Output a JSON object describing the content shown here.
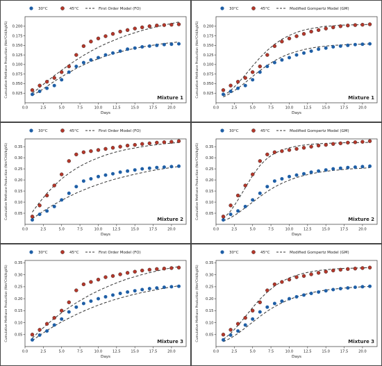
{
  "legend_items": {
    "s30": "30°C",
    "s45": "45°C"
  },
  "colors": {
    "s30": "#1f5fa6",
    "s45": "#b5372a",
    "fit": "#333333"
  },
  "chart_data": [
    {
      "type": "scatter",
      "model": "First Order Model (FO)",
      "annotation": "Mixture 1",
      "xlabel": "Days",
      "ylabel": "Cumulative Methane Production (Nm³CH4/kgVS)",
      "xlim": [
        0,
        22
      ],
      "ylim": [
        0.0,
        0.225
      ],
      "xticks": [
        0,
        2.5,
        5.0,
        7.5,
        10.0,
        12.5,
        15.0,
        17.5,
        20.0
      ],
      "xtick_labels": [
        "0.0",
        "2.5",
        "5.0",
        "7.5",
        "10.0",
        "12.5",
        "15.0",
        "17.5",
        "20.0"
      ],
      "yticks": [
        0.025,
        0.05,
        0.075,
        0.1,
        0.125,
        0.15,
        0.175,
        0.2
      ],
      "ytick_labels": [
        "0.025",
        "0.050",
        "0.075",
        "0.100",
        "0.125",
        "0.150",
        "0.175",
        "0.200"
      ],
      "x": [
        1,
        2,
        3,
        4,
        5,
        6,
        7,
        8,
        9,
        10,
        11,
        12,
        13,
        14,
        15,
        16,
        17,
        18,
        19,
        20,
        21
      ],
      "series": [
        {
          "name": "30°C",
          "values": [
            0.022,
            0.03,
            0.038,
            0.045,
            0.06,
            0.08,
            0.095,
            0.105,
            0.112,
            0.118,
            0.125,
            0.13,
            0.135,
            0.14,
            0.143,
            0.146,
            0.148,
            0.15,
            0.152,
            0.153,
            0.154
          ]
        },
        {
          "name": "45°C",
          "values": [
            0.033,
            0.045,
            0.055,
            0.065,
            0.08,
            0.095,
            0.125,
            0.148,
            0.16,
            0.168,
            0.174,
            0.18,
            0.186,
            0.19,
            0.194,
            0.197,
            0.2,
            0.202,
            0.203,
            0.204,
            0.205
          ]
        }
      ],
      "fits": [
        {
          "name": "fit-30",
          "values": [
            0.02,
            0.03,
            0.043,
            0.056,
            0.068,
            0.079,
            0.09,
            0.099,
            0.108,
            0.115,
            0.122,
            0.128,
            0.133,
            0.138,
            0.142,
            0.146,
            0.149,
            0.152,
            0.155,
            0.157,
            0.159
          ]
        },
        {
          "name": "fit-45",
          "values": [
            0.025,
            0.04,
            0.056,
            0.071,
            0.085,
            0.099,
            0.112,
            0.124,
            0.135,
            0.145,
            0.154,
            0.162,
            0.17,
            0.177,
            0.183,
            0.189,
            0.194,
            0.199,
            0.203,
            0.207,
            0.211
          ]
        }
      ]
    },
    {
      "type": "scatter",
      "model": "Modified Gompertz Model (GM)",
      "annotation": "Mixture 1",
      "xlabel": "Days",
      "ylabel": "Cumulative Methane Production (Nm³CH4/kgVS)",
      "xlim": [
        0,
        22
      ],
      "ylim": [
        0.0,
        0.225
      ],
      "xticks": [
        0,
        2.5,
        5.0,
        7.5,
        10.0,
        12.5,
        15.0,
        17.5,
        20.0
      ],
      "xtick_labels": [
        "0.0",
        "2.5",
        "5.0",
        "7.5",
        "10.0",
        "12.5",
        "15.0",
        "17.5",
        "20.0"
      ],
      "yticks": [
        0.025,
        0.05,
        0.075,
        0.1,
        0.125,
        0.15,
        0.175,
        0.2
      ],
      "ytick_labels": [
        "0.025",
        "0.050",
        "0.075",
        "0.100",
        "0.125",
        "0.150",
        "0.175",
        "0.200"
      ],
      "x": [
        1,
        2,
        3,
        4,
        5,
        6,
        7,
        8,
        9,
        10,
        11,
        12,
        13,
        14,
        15,
        16,
        17,
        18,
        19,
        20,
        21
      ],
      "series": [
        {
          "name": "30°C",
          "values": [
            0.022,
            0.03,
            0.038,
            0.045,
            0.06,
            0.08,
            0.095,
            0.105,
            0.112,
            0.118,
            0.125,
            0.13,
            0.135,
            0.14,
            0.143,
            0.146,
            0.148,
            0.15,
            0.152,
            0.153,
            0.154
          ]
        },
        {
          "name": "45°C",
          "values": [
            0.033,
            0.045,
            0.055,
            0.065,
            0.08,
            0.095,
            0.125,
            0.148,
            0.16,
            0.168,
            0.174,
            0.18,
            0.186,
            0.19,
            0.194,
            0.197,
            0.2,
            0.202,
            0.203,
            0.204,
            0.205
          ]
        }
      ],
      "fits": [
        {
          "name": "fit-30",
          "values": [
            0.015,
            0.025,
            0.038,
            0.053,
            0.069,
            0.084,
            0.098,
            0.11,
            0.12,
            0.128,
            0.134,
            0.139,
            0.143,
            0.146,
            0.148,
            0.15,
            0.151,
            0.152,
            0.153,
            0.153,
            0.154
          ]
        },
        {
          "name": "fit-45",
          "values": [
            0.018,
            0.032,
            0.051,
            0.073,
            0.096,
            0.118,
            0.137,
            0.153,
            0.166,
            0.176,
            0.184,
            0.19,
            0.194,
            0.197,
            0.2,
            0.201,
            0.203,
            0.203,
            0.204,
            0.204,
            0.205
          ]
        }
      ]
    },
    {
      "type": "scatter",
      "model": "First Order Model (FO)",
      "annotation": "Mixture 2",
      "xlabel": "Days",
      "ylabel": "Cumulative Methane Production (Nm³CH4/kgVS)",
      "xlim": [
        0,
        22
      ],
      "ylim": [
        0.0,
        0.385
      ],
      "xticks": [
        0,
        2.5,
        5.0,
        7.5,
        10.0,
        12.5,
        15.0,
        17.5,
        20.0
      ],
      "xtick_labels": [
        "0.0",
        "2.5",
        "5.0",
        "7.5",
        "10.0",
        "12.5",
        "15.0",
        "17.5",
        "20.0"
      ],
      "yticks": [
        0.05,
        0.1,
        0.15,
        0.2,
        0.25,
        0.3,
        0.35
      ],
      "ytick_labels": [
        "0.05",
        "0.10",
        "0.15",
        "0.20",
        "0.25",
        "0.30",
        "0.35"
      ],
      "x": [
        1,
        2,
        3,
        4,
        5,
        6,
        7,
        8,
        9,
        10,
        11,
        12,
        13,
        14,
        15,
        16,
        17,
        18,
        19,
        20,
        21
      ],
      "series": [
        {
          "name": "30°C",
          "values": [
            0.02,
            0.045,
            0.06,
            0.08,
            0.11,
            0.14,
            0.17,
            0.195,
            0.205,
            0.215,
            0.222,
            0.228,
            0.235,
            0.24,
            0.245,
            0.25,
            0.253,
            0.256,
            0.258,
            0.26,
            0.262
          ]
        },
        {
          "name": "45°C",
          "values": [
            0.035,
            0.085,
            0.13,
            0.175,
            0.225,
            0.285,
            0.315,
            0.325,
            0.33,
            0.335,
            0.34,
            0.345,
            0.35,
            0.355,
            0.358,
            0.362,
            0.365,
            0.368,
            0.37,
            0.372,
            0.375
          ]
        }
      ],
      "fits": [
        {
          "name": "fit-30",
          "values": [
            0.025,
            0.048,
            0.07,
            0.09,
            0.108,
            0.125,
            0.141,
            0.155,
            0.168,
            0.18,
            0.191,
            0.201,
            0.21,
            0.218,
            0.226,
            0.233,
            0.24,
            0.246,
            0.251,
            0.256,
            0.261
          ]
        },
        {
          "name": "fit-45",
          "values": [
            0.055,
            0.1,
            0.14,
            0.175,
            0.205,
            0.23,
            0.252,
            0.27,
            0.286,
            0.3,
            0.312,
            0.322,
            0.331,
            0.338,
            0.344,
            0.35,
            0.355,
            0.359,
            0.363,
            0.366,
            0.369
          ]
        }
      ]
    },
    {
      "type": "scatter",
      "model": "Modified Gompertz Model (GM)",
      "annotation": "Mixture 2",
      "xlabel": "Days",
      "ylabel": "Cumulative Methane Production (Nm³CH4/kgVS)",
      "xlim": [
        0,
        22
      ],
      "ylim": [
        0.0,
        0.385
      ],
      "xticks": [
        0,
        2.5,
        5.0,
        7.5,
        10.0,
        12.5,
        15.0,
        17.5,
        20.0
      ],
      "xtick_labels": [
        "0.0",
        "2.5",
        "5.0",
        "7.5",
        "10.0",
        "12.5",
        "15.0",
        "17.5",
        "20.0"
      ],
      "yticks": [
        0.05,
        0.1,
        0.15,
        0.2,
        0.25,
        0.3,
        0.35
      ],
      "ytick_labels": [
        "0.05",
        "0.10",
        "0.15",
        "0.20",
        "0.25",
        "0.30",
        "0.35"
      ],
      "x": [
        1,
        2,
        3,
        4,
        5,
        6,
        7,
        8,
        9,
        10,
        11,
        12,
        13,
        14,
        15,
        16,
        17,
        18,
        19,
        20,
        21
      ],
      "series": [
        {
          "name": "30°C",
          "values": [
            0.02,
            0.045,
            0.06,
            0.08,
            0.11,
            0.14,
            0.17,
            0.195,
            0.205,
            0.215,
            0.222,
            0.228,
            0.235,
            0.24,
            0.245,
            0.25,
            0.253,
            0.256,
            0.258,
            0.26,
            0.262
          ]
        },
        {
          "name": "45°C",
          "values": [
            0.035,
            0.085,
            0.13,
            0.175,
            0.225,
            0.285,
            0.315,
            0.325,
            0.33,
            0.335,
            0.34,
            0.345,
            0.35,
            0.355,
            0.358,
            0.362,
            0.365,
            0.368,
            0.37,
            0.372,
            0.375
          ]
        }
      ],
      "fits": [
        {
          "name": "fit-30",
          "values": [
            0.015,
            0.03,
            0.05,
            0.075,
            0.1,
            0.125,
            0.148,
            0.168,
            0.185,
            0.199,
            0.211,
            0.22,
            0.228,
            0.234,
            0.239,
            0.243,
            0.246,
            0.249,
            0.251,
            0.253,
            0.255
          ]
        },
        {
          "name": "fit-45",
          "values": [
            0.025,
            0.06,
            0.11,
            0.165,
            0.22,
            0.265,
            0.298,
            0.32,
            0.335,
            0.345,
            0.352,
            0.357,
            0.361,
            0.363,
            0.365,
            0.366,
            0.367,
            0.368,
            0.368,
            0.369,
            0.369
          ]
        }
      ]
    },
    {
      "type": "scatter",
      "model": "First Order Model (FO)",
      "annotation": "Mixture 3",
      "xlabel": "Days",
      "ylabel": "Cumulative Methane Production (Nm³CH4/kgVS)",
      "xlim": [
        0,
        22
      ],
      "ylim": [
        0.0,
        0.36
      ],
      "xticks": [
        0,
        2.5,
        5.0,
        7.5,
        10.0,
        12.5,
        15.0,
        17.5,
        20.0
      ],
      "xtick_labels": [
        "0.0",
        "2.5",
        "5.0",
        "7.5",
        "10.0",
        "12.5",
        "15.0",
        "17.5",
        "20.0"
      ],
      "yticks": [
        0.05,
        0.1,
        0.15,
        0.2,
        0.25,
        0.3,
        0.35
      ],
      "ytick_labels": [
        "0.05",
        "0.10",
        "0.15",
        "0.20",
        "0.25",
        "0.30",
        "0.35"
      ],
      "x": [
        1,
        2,
        3,
        4,
        5,
        6,
        7,
        8,
        9,
        10,
        11,
        12,
        13,
        14,
        15,
        16,
        17,
        18,
        19,
        20,
        21
      ],
      "series": [
        {
          "name": "30°C",
          "values": [
            0.028,
            0.048,
            0.065,
            0.09,
            0.115,
            0.145,
            0.165,
            0.18,
            0.19,
            0.2,
            0.208,
            0.215,
            0.222,
            0.228,
            0.233,
            0.238,
            0.242,
            0.245,
            0.248,
            0.25,
            0.252
          ]
        },
        {
          "name": "45°C",
          "values": [
            0.05,
            0.07,
            0.095,
            0.12,
            0.15,
            0.185,
            0.235,
            0.26,
            0.27,
            0.28,
            0.29,
            0.295,
            0.302,
            0.308,
            0.313,
            0.318,
            0.321,
            0.324,
            0.326,
            0.328,
            0.33
          ]
        }
      ],
      "fits": [
        {
          "name": "fit-30",
          "values": [
            0.025,
            0.047,
            0.067,
            0.086,
            0.103,
            0.119,
            0.134,
            0.148,
            0.161,
            0.173,
            0.184,
            0.194,
            0.203,
            0.211,
            0.219,
            0.226,
            0.232,
            0.238,
            0.244,
            0.249,
            0.254
          ]
        },
        {
          "name": "fit-45",
          "values": [
            0.035,
            0.065,
            0.092,
            0.118,
            0.141,
            0.163,
            0.183,
            0.201,
            0.218,
            0.233,
            0.247,
            0.26,
            0.272,
            0.283,
            0.292,
            0.301,
            0.309,
            0.316,
            0.323,
            0.329,
            0.334
          ]
        }
      ]
    },
    {
      "type": "scatter",
      "model": "Modified Gompertz Model (GM)",
      "annotation": "Mixture 3",
      "xlabel": "Days",
      "ylabel": "Cumulative Methane Production (Nm³CH4/kgVS)",
      "xlim": [
        0,
        22
      ],
      "ylim": [
        0.0,
        0.36
      ],
      "xticks": [
        0,
        2.5,
        5.0,
        7.5,
        10.0,
        12.5,
        15.0,
        17.5,
        20.0
      ],
      "xtick_labels": [
        "0.0",
        "2.5",
        "5.0",
        "7.5",
        "10.0",
        "12.5",
        "15.0",
        "17.5",
        "20.0"
      ],
      "yticks": [
        0.05,
        0.1,
        0.15,
        0.2,
        0.25,
        0.3,
        0.35
      ],
      "ytick_labels": [
        "0.05",
        "0.10",
        "0.15",
        "0.20",
        "0.25",
        "0.30",
        "0.35"
      ],
      "x": [
        1,
        2,
        3,
        4,
        5,
        6,
        7,
        8,
        9,
        10,
        11,
        12,
        13,
        14,
        15,
        16,
        17,
        18,
        19,
        20,
        21
      ],
      "series": [
        {
          "name": "30°C",
          "values": [
            0.028,
            0.048,
            0.065,
            0.09,
            0.115,
            0.145,
            0.165,
            0.18,
            0.19,
            0.2,
            0.208,
            0.215,
            0.222,
            0.228,
            0.233,
            0.238,
            0.242,
            0.245,
            0.248,
            0.25,
            0.252
          ]
        },
        {
          "name": "45°C",
          "values": [
            0.05,
            0.07,
            0.095,
            0.12,
            0.15,
            0.185,
            0.235,
            0.26,
            0.27,
            0.28,
            0.29,
            0.295,
            0.302,
            0.308,
            0.313,
            0.318,
            0.321,
            0.324,
            0.326,
            0.328,
            0.33
          ]
        }
      ],
      "fits": [
        {
          "name": "fit-30",
          "values": [
            0.02,
            0.035,
            0.055,
            0.078,
            0.102,
            0.126,
            0.148,
            0.167,
            0.183,
            0.197,
            0.208,
            0.217,
            0.225,
            0.231,
            0.236,
            0.24,
            0.243,
            0.246,
            0.248,
            0.25,
            0.251
          ]
        },
        {
          "name": "fit-45",
          "values": [
            0.03,
            0.055,
            0.088,
            0.125,
            0.163,
            0.198,
            0.228,
            0.253,
            0.272,
            0.287,
            0.298,
            0.307,
            0.313,
            0.318,
            0.321,
            0.324,
            0.326,
            0.327,
            0.328,
            0.329,
            0.33
          ]
        }
      ]
    }
  ]
}
